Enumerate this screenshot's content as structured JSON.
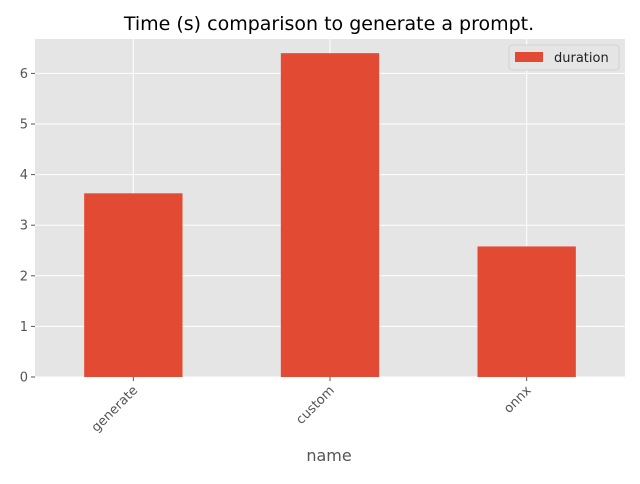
{
  "chart_data": {
    "type": "bar",
    "title": "Time (s) comparison to generate a prompt.",
    "xlabel": "name",
    "ylabel": "",
    "categories": [
      "generate",
      "custom",
      "onnx"
    ],
    "series": [
      {
        "name": "duration",
        "values": [
          3.63,
          6.4,
          2.58
        ],
        "color": "#E24A33"
      }
    ],
    "ylim": [
      0,
      6.68
    ],
    "yticks": [
      "0",
      "1",
      "2",
      "3",
      "4",
      "5",
      "6"
    ],
    "grid": true,
    "legend": "top-right",
    "colors": {
      "plot_background": "#E5E5E5",
      "grid": "#FFFFFF",
      "text": "#555555",
      "title": "#000000"
    }
  }
}
